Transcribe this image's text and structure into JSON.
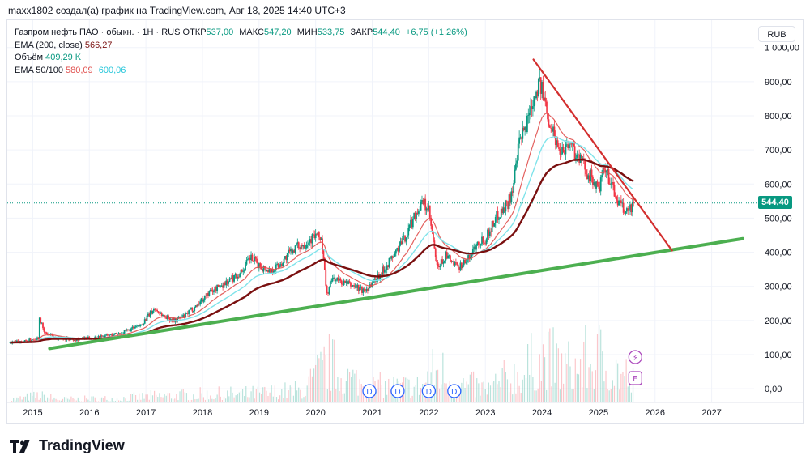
{
  "caption": "maxx1802 создал(а) график на TradingView.com, Авг 18, 2025 14:40 UTC+3",
  "legend": {
    "symbol": "Газпром нефть ПАО · обыкн. · 1Н · RUS",
    "open_label": "ОТКР",
    "open": "537,00",
    "high_label": "МАКС",
    "high": "547,20",
    "low_label": "МИН",
    "low": "533,75",
    "close_label": "ЗАКР",
    "close": "544,40",
    "change": "+6,75 (+1,26%)",
    "ema200_label": "EMA (200, close)",
    "ema200": "566,27",
    "volume_label": "Объём",
    "volume": "409,29 K",
    "ema_pair_label": "EMA 50/100",
    "ema50": "580,09",
    "ema100": "600,06"
  },
  "currency_button": "RUB",
  "last_price": "544,40",
  "brand": "TradingView",
  "colors": {
    "up": "#089981",
    "down": "#f23645",
    "ema50": "#e0504e",
    "ema100": "#7fe3ea",
    "ema200": "#7a1010",
    "support": "#4caf50",
    "resistance": "#d32f2f"
  },
  "chart_data": {
    "type": "candlestick",
    "y_ticks": [
      "1 000,00",
      "900,00",
      "800,00",
      "700,00",
      "600,00",
      "500,00",
      "400,00",
      "300,00",
      "200,00",
      "100,00",
      "0,00"
    ],
    "y_tick_values": [
      1000,
      900,
      800,
      700,
      600,
      500,
      400,
      300,
      200,
      100,
      0
    ],
    "x_ticks": [
      "2015",
      "2016",
      "2017",
      "2018",
      "2019",
      "2020",
      "2021",
      "2022",
      "2023",
      "2024",
      "2025",
      "2026",
      "2027"
    ],
    "x_tick_values": [
      2015,
      2016,
      2017,
      2018,
      2019,
      2020,
      2021,
      2022,
      2023,
      2024,
      2025,
      2026,
      2027
    ],
    "xlim": [
      2014.55,
      2027.75
    ],
    "ylim": [
      -40,
      1080
    ],
    "price_path": [
      [
        2014.6,
        135
      ],
      [
        2014.9,
        140
      ],
      [
        2015.1,
        150
      ],
      [
        2015.12,
        210
      ],
      [
        2015.2,
        165
      ],
      [
        2015.4,
        150
      ],
      [
        2015.7,
        145
      ],
      [
        2016.0,
        148
      ],
      [
        2016.3,
        155
      ],
      [
        2016.6,
        165
      ],
      [
        2016.9,
        185
      ],
      [
        2017.0,
        205
      ],
      [
        2017.15,
        235
      ],
      [
        2017.3,
        215
      ],
      [
        2017.5,
        200
      ],
      [
        2017.7,
        215
      ],
      [
        2017.9,
        245
      ],
      [
        2018.1,
        280
      ],
      [
        2018.3,
        300
      ],
      [
        2018.5,
        320
      ],
      [
        2018.7,
        345
      ],
      [
        2018.85,
        385
      ],
      [
        2019.0,
        360
      ],
      [
        2019.2,
        345
      ],
      [
        2019.4,
        370
      ],
      [
        2019.6,
        410
      ],
      [
        2019.8,
        425
      ],
      [
        2020.0,
        450
      ],
      [
        2020.1,
        440
      ],
      [
        2020.2,
        275
      ],
      [
        2020.3,
        325
      ],
      [
        2020.5,
        310
      ],
      [
        2020.7,
        300
      ],
      [
        2020.85,
        285
      ],
      [
        2021.0,
        310
      ],
      [
        2021.2,
        350
      ],
      [
        2021.4,
        395
      ],
      [
        2021.6,
        450
      ],
      [
        2021.75,
        510
      ],
      [
        2021.9,
        545
      ],
      [
        2022.0,
        520
      ],
      [
        2022.15,
        350
      ],
      [
        2022.3,
        390
      ],
      [
        2022.5,
        355
      ],
      [
        2022.7,
        380
      ],
      [
        2022.85,
        430
      ],
      [
        2023.0,
        440
      ],
      [
        2023.2,
        505
      ],
      [
        2023.4,
        545
      ],
      [
        2023.5,
        600
      ],
      [
        2023.6,
        720
      ],
      [
        2023.7,
        760
      ],
      [
        2023.8,
        830
      ],
      [
        2023.95,
        900
      ],
      [
        2024.05,
        840
      ],
      [
        2024.15,
        780
      ],
      [
        2024.3,
        700
      ],
      [
        2024.5,
        720
      ],
      [
        2024.6,
        690
      ],
      [
        2024.75,
        650
      ],
      [
        2024.9,
        610
      ],
      [
        2025.0,
        580
      ],
      [
        2025.1,
        640
      ],
      [
        2025.2,
        615
      ],
      [
        2025.3,
        560
      ],
      [
        2025.45,
        520
      ],
      [
        2025.55,
        525
      ],
      [
        2025.63,
        544
      ]
    ],
    "volume_envelope": [
      [
        2014.6,
        12
      ],
      [
        2015.1,
        30
      ],
      [
        2015.5,
        14
      ],
      [
        2016.5,
        18
      ],
      [
        2017.2,
        30
      ],
      [
        2018.0,
        35
      ],
      [
        2019.0,
        40
      ],
      [
        2019.8,
        55
      ],
      [
        2020.2,
        170
      ],
      [
        2020.6,
        110
      ],
      [
        2021.0,
        70
      ],
      [
        2021.8,
        70
      ],
      [
        2022.15,
        150
      ],
      [
        2022.6,
        80
      ],
      [
        2023.0,
        60
      ],
      [
        2023.6,
        130
      ],
      [
        2024.0,
        190
      ],
      [
        2024.5,
        150
      ],
      [
        2025.0,
        200
      ],
      [
        2025.5,
        120
      ],
      [
        2025.63,
        80
      ]
    ],
    "volume_scale_max": 220,
    "series": [
      {
        "name": "EMA (200, close)",
        "values": "ema200",
        "last": 566.27
      },
      {
        "name": "EMA 50",
        "values": "ema50",
        "last": 580.09
      },
      {
        "name": "EMA 100",
        "values": "ema100",
        "last": 600.06
      }
    ],
    "trendlines": [
      {
        "role": "support",
        "from": [
          2015.3,
          118
        ],
        "to": [
          2027.55,
          440
        ]
      },
      {
        "role": "resistance",
        "from": [
          2023.85,
          965
        ],
        "to": [
          2026.3,
          405
        ]
      }
    ],
    "last_price_value": 544.4,
    "dividend_markers": [
      2020.95,
      2021.45,
      2022.0,
      2022.45
    ],
    "dividend_marker_label": "D",
    "event_markers": [
      {
        "x": 2025.65,
        "y_from_bottom": 30,
        "label": "E"
      },
      {
        "x": 2025.65,
        "y_from_bottom": 56,
        "label": "⚡"
      }
    ],
    "grid": true
  }
}
